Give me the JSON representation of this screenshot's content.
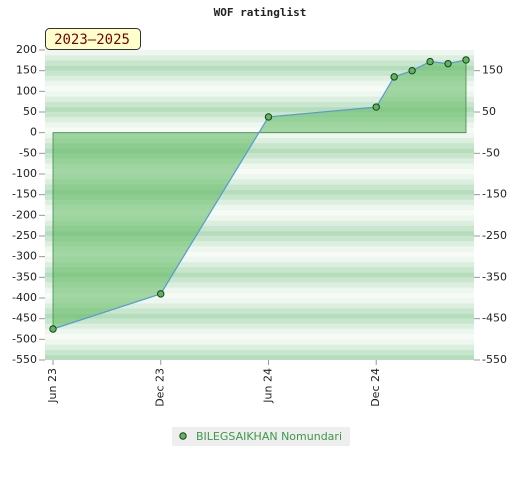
{
  "chart_data": {
    "type": "area",
    "title": "WOF ratinglist",
    "period_label": "2023–2025",
    "x": [
      "2023-06",
      "2023-12",
      "2024-06",
      "2024-12",
      "2025-01",
      "2025-02",
      "2025-03",
      "2025-04",
      "2025-05"
    ],
    "series": [
      {
        "name": "BILEGSAIKHAN Nomundari",
        "color": "#5cb85c",
        "values": [
          -475,
          -390,
          38,
          62,
          135,
          150,
          172,
          167,
          176
        ]
      }
    ],
    "xticks": [
      {
        "value": "2023-06",
        "label": "Jun 23"
      },
      {
        "value": "2023-12",
        "label": "Dec 23"
      },
      {
        "value": "2024-06",
        "label": "Jun 24"
      },
      {
        "value": "2024-12",
        "label": "Dec 24"
      }
    ],
    "xlim": [
      "2023-06",
      "2025-05"
    ],
    "ylim": [
      -550,
      200
    ],
    "yticks": [
      200,
      150,
      100,
      50,
      0,
      -50,
      -100,
      -150,
      -200,
      -250,
      -300,
      -350,
      -400,
      -450,
      -500,
      -550
    ],
    "y2lim": [
      -550,
      200
    ],
    "y2ticks": [
      150,
      50,
      -50,
      -150,
      -250,
      -350,
      -450,
      -550
    ]
  }
}
